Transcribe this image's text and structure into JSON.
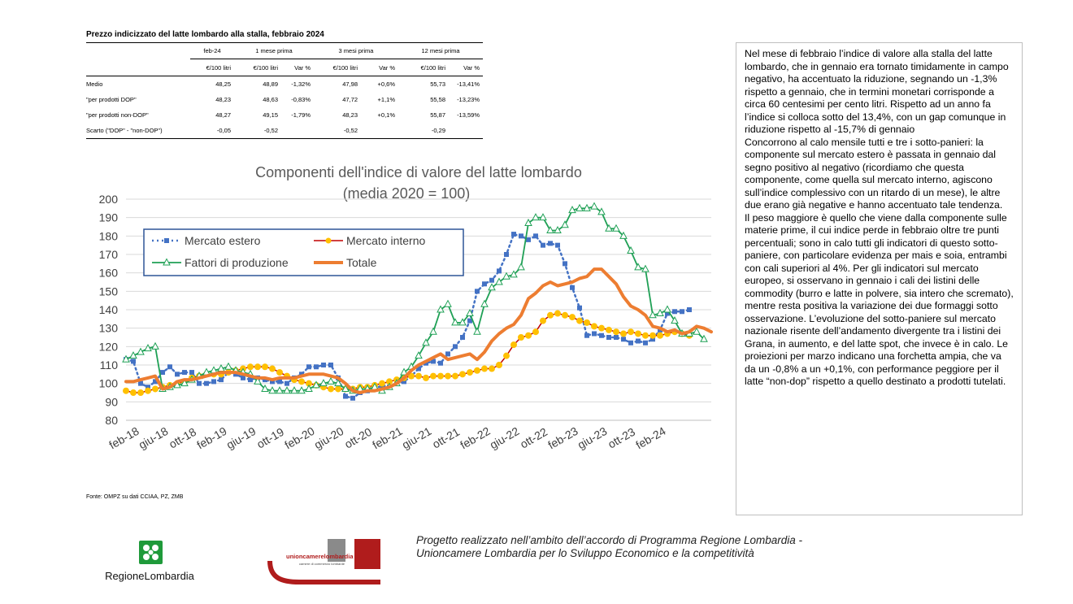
{
  "table": {
    "title": "Prezzo indicizzato del latte lombardo alla stalla, febbraio 2024",
    "group_headers": [
      "feb-24",
      "1 mese prima",
      "3 mesi prima",
      "12 mesi prima"
    ],
    "sub_headers": [
      "€/100 litri",
      "€/100 litri",
      "Var %",
      "€/100 litri",
      "Var %",
      "€/100 litri",
      "Var %"
    ],
    "rows": [
      {
        "label": "Medio",
        "values": [
          "48,25",
          "48,89",
          "-1,32%",
          "47,98",
          "+0,6%",
          "55,73",
          "-13,41%"
        ]
      },
      {
        "label": "\"per prodotti DOP\"",
        "values": [
          "48,23",
          "48,63",
          "-0,83%",
          "47,72",
          "+1,1%",
          "55,58",
          "-13,23%"
        ]
      },
      {
        "label": "\"per prodotti non-DOP\"",
        "values": [
          "48,27",
          "49,15",
          "-1,79%",
          "48,23",
          "+0,1%",
          "55,87",
          "-13,59%"
        ]
      },
      {
        "label": "Scarto (\"DOP\" - \"non-DOP\")",
        "values": [
          "-0,05",
          "-0,52",
          "",
          "-0,52",
          "",
          "-0,29",
          ""
        ]
      }
    ]
  },
  "chart_data": {
    "type": "line",
    "title": "Componenti dell'indice di valore del latte lombardo",
    "subtitle": "(media 2020 = 100)",
    "ylim": [
      80,
      200
    ],
    "ytick_step": 10,
    "x_tick_labels": [
      "feb-18",
      "giu-18",
      "ott-18",
      "feb-19",
      "giu-19",
      "ott-19",
      "feb-20",
      "giu-20",
      "ott-20",
      "feb-21",
      "giu-21",
      "ott-21",
      "feb-22",
      "giu-22",
      "ott-22",
      "feb-23",
      "giu-23",
      "ott-23",
      "feb-24"
    ],
    "grid": true,
    "legend_position": "top-left",
    "series": [
      {
        "name": "Mercato estero",
        "color": "#4472c4",
        "values": [
          113,
          112,
          100,
          98,
          101,
          106,
          109,
          105,
          106,
          106,
          100,
          100,
          101,
          102,
          106,
          105,
          103,
          102,
          103,
          102,
          101,
          101,
          100,
          103,
          105,
          109,
          109,
          110,
          110,
          103,
          93,
          92,
          95,
          96,
          97,
          99,
          98,
          100,
          101,
          104,
          108,
          111,
          112,
          111,
          116,
          120,
          125,
          134,
          150,
          154,
          156,
          161,
          170,
          181,
          180,
          178,
          180,
          175,
          176,
          175,
          165,
          152,
          141,
          126,
          127,
          126,
          125,
          125,
          124,
          122,
          123,
          122,
          124,
          129,
          138,
          139,
          139,
          140
        ]
      },
      {
        "name": "Mercato interno",
        "color": "#c00000",
        "values": [
          96,
          95,
          95,
          96,
          97,
          98,
          99,
          100,
          101,
          103,
          104,
          105,
          105,
          105,
          106,
          107,
          108,
          109,
          109,
          109,
          108,
          106,
          104,
          102,
          101,
          100,
          99,
          98,
          97,
          97,
          97,
          97,
          98,
          98,
          99,
          100,
          101,
          102,
          103,
          104,
          104,
          103,
          104,
          104,
          104,
          104,
          105,
          106,
          107,
          108,
          108,
          110,
          115,
          121,
          125,
          126,
          128,
          134,
          137,
          138,
          137,
          136,
          134,
          133,
          131,
          130,
          129,
          128,
          127,
          128,
          127,
          126,
          126,
          126,
          127,
          128,
          127,
          126
        ]
      },
      {
        "name": "Fattori di produzione",
        "color": "#1fa055",
        "values": [
          113,
          115,
          117,
          119,
          120,
          97,
          98,
          99,
          100,
          102,
          104,
          106,
          107,
          108,
          109,
          107,
          106,
          105,
          101,
          97,
          96,
          96,
          96,
          96,
          96,
          97,
          99,
          100,
          101,
          100,
          97,
          96,
          97,
          97,
          98,
          96,
          98,
          100,
          106,
          109,
          115,
          122,
          128,
          140,
          143,
          133,
          133,
          138,
          128,
          143,
          152,
          155,
          158,
          159,
          163,
          187,
          190,
          190,
          183,
          183,
          186,
          194,
          195,
          195,
          196,
          193,
          184,
          184,
          180,
          172,
          163,
          162,
          137,
          138,
          140,
          134,
          127,
          127,
          128,
          124
        ]
      },
      {
        "name": "Totale",
        "color": "#ed7d31",
        "values": [
          101,
          101,
          102,
          103,
          104,
          97,
          98,
          101,
          102,
          102,
          103,
          104,
          105,
          106,
          106,
          106,
          105,
          104,
          103,
          103,
          102,
          103,
          103,
          103,
          104,
          105,
          105,
          105,
          104,
          103,
          100,
          96,
          95,
          96,
          96,
          97,
          98,
          100,
          103,
          107,
          110,
          112,
          114,
          116,
          113,
          114,
          115,
          116,
          113,
          117,
          123,
          127,
          130,
          132,
          137,
          146,
          149,
          153,
          155,
          153,
          154,
          155,
          157,
          158,
          162,
          162,
          158,
          154,
          147,
          142,
          140,
          137,
          131,
          130,
          128,
          129,
          127,
          128,
          131,
          130,
          128
        ]
      }
    ]
  },
  "source": "Fonte: OMPZ su dati CCIAA, PZ, ZMB",
  "text_box": {
    "paragraphs": [
      "Nel mese di febbraio l’indice di valore alla stalla del latte lombardo, che in gennaio era tornato timidamente in campo negativo, ha accentuato la riduzione, segnando un -1,3% rispetto a gennaio, che in termini monetari corrisponde a circa 60 centesimi per cento litri. Rispetto ad un anno fa l’indice si colloca sotto del 13,4%, con un gap comunque in riduzione rispetto al -15,7% di gennaio",
      "Concorrono al calo mensile tutti e tre i sotto-panieri: la componente sul mercato estero è passata in gennaio dal segno positivo al negativo (ricordiamo che questa componente, come quella sul mercato interno, agiscono sull’indice complessivo con un ritardo di un mese), le altre due erano già negative e hanno accentuato tale tendenza.",
      "Il peso maggiore è quello che viene dalla componente sulle materie prime, il cui indice perde in febbraio oltre tre punti percentuali; sono in calo tutti gli indicatori di questo sotto-paniere, con particolare evidenza per mais e soia, entrambi con cali superiori al 4%.   Per gli indicatori sul mercato europeo, si osservano in gennaio i cali dei listini delle commodity (burro e latte in polvere, sia intero che scremato), mentre resta positiva la variazione dei due formaggi sotto osservazione. L’evoluzione del sotto-paniere sul mercato nazionale risente dell’andamento divergente tra i listini dei Grana, in aumento, e del latte spot, che invece è in calo. Le proiezioni per marzo indicano una forchetta ampia, che va da un -0,8% a un +0,1%,  con performance peggiore per il latte “non-dop” rispetto a quello destinato a prodotti tutelati."
    ]
  },
  "logos": {
    "regione": {
      "name": "RegioneLombardia",
      "icon": "regione-lombardia-rose-icon",
      "color": "#1f9a3a"
    },
    "unioncamere": {
      "name": "unioncamerelombardia",
      "tagline": "camere di commercio lombarde",
      "icon": "unioncamere-u-icon",
      "color": "#b01c1c"
    }
  },
  "footer": {
    "line1": "Progetto realizzato nell’ambito  dell’accordo di Programma Regione Lombardia  -",
    "line2": "Unioncamere Lombardia per lo Sviluppo Economico e la competitività"
  }
}
